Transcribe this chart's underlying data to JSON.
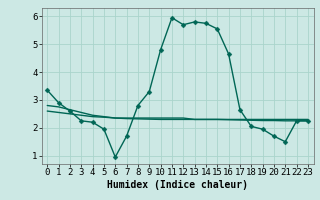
{
  "title": "",
  "xlabel": "Humidex (Indice chaleur)",
  "ylabel": "",
  "bg_color": "#cce8e4",
  "grid_color": "#aad4cc",
  "line_color": "#006655",
  "x": [
    0,
    1,
    2,
    3,
    4,
    5,
    6,
    7,
    8,
    9,
    10,
    11,
    12,
    13,
    14,
    15,
    16,
    17,
    18,
    19,
    20,
    21,
    22,
    23
  ],
  "y_main": [
    3.35,
    2.9,
    2.6,
    2.25,
    2.2,
    1.95,
    0.95,
    1.7,
    2.8,
    3.3,
    4.8,
    5.95,
    5.7,
    5.8,
    5.75,
    5.55,
    4.65,
    2.65,
    2.05,
    1.95,
    1.7,
    1.5,
    2.25,
    2.25
  ],
  "y_trend": [
    2.8,
    2.75,
    2.65,
    2.55,
    2.45,
    2.4,
    2.35,
    2.35,
    2.35,
    2.35,
    2.35,
    2.35,
    2.35,
    2.3,
    2.3,
    2.3,
    2.3,
    2.3,
    2.3,
    2.3,
    2.3,
    2.3,
    2.3,
    2.3
  ],
  "y_trend2": [
    2.6,
    2.55,
    2.5,
    2.45,
    2.4,
    2.38,
    2.35,
    2.33,
    2.32,
    2.31,
    2.3,
    2.3,
    2.3,
    2.3,
    2.3,
    2.3,
    2.29,
    2.28,
    2.27,
    2.26,
    2.26,
    2.25,
    2.25,
    2.25
  ],
  "ylim": [
    0.7,
    6.3
  ],
  "xlim": [
    -0.5,
    23.5
  ],
  "yticks": [
    1,
    2,
    3,
    4,
    5,
    6
  ],
  "xticks": [
    0,
    1,
    2,
    3,
    4,
    5,
    6,
    7,
    8,
    9,
    10,
    11,
    12,
    13,
    14,
    15,
    16,
    17,
    18,
    19,
    20,
    21,
    22,
    23
  ],
  "marker_size": 2.5,
  "line_width": 1.0,
  "font_size_label": 7,
  "font_size_tick": 6.5,
  "font_family": "monospace"
}
